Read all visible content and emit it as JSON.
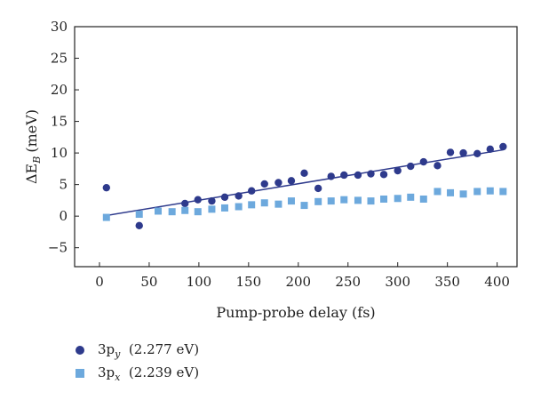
{
  "chart_data": {
    "type": "scatter",
    "xlabel": "Pump-probe delay (fs)",
    "ylabel": "ΔE",
    "ylabel_sub": "B",
    "ylabel_unit": "(meV)",
    "xlim": [
      -25,
      420
    ],
    "ylim": [
      -8,
      30
    ],
    "xticks": [
      "0",
      "50",
      "100",
      "150",
      "200",
      "250",
      "300",
      "350",
      "400"
    ],
    "yticks": [
      "−5",
      "0",
      "5",
      "10",
      "15",
      "20",
      "25",
      "30"
    ],
    "grid": false,
    "legend_position": "below",
    "series": [
      {
        "name": "3p",
        "name_sub": "y",
        "name_extra": "(2.277 eV)",
        "marker": "circle",
        "color": "#2e3a8c",
        "x": [
          7,
          40,
          86,
          99,
          113,
          126,
          140,
          153,
          166,
          180,
          193,
          206,
          220,
          233,
          246,
          260,
          273,
          286,
          300,
          313,
          326,
          340,
          353,
          366,
          380,
          393,
          406
        ],
        "y": [
          4.5,
          -1.5,
          2.0,
          2.6,
          2.4,
          3.0,
          3.2,
          4.0,
          5.1,
          5.3,
          5.6,
          6.8,
          4.4,
          6.3,
          6.5,
          6.5,
          6.7,
          6.6,
          7.2,
          7.9,
          8.6,
          8.0,
          10.1,
          10.0,
          9.9,
          10.6,
          11.0
        ],
        "fit": [
          [
            7,
            0.1
          ],
          [
            406,
            10.5
          ]
        ]
      },
      {
        "name": "3p",
        "name_sub": "x",
        "name_extra": "(2.239 eV)",
        "marker": "square",
        "color": "#6da9dd",
        "x": [
          7,
          40,
          59,
          73,
          86,
          99,
          113,
          126,
          140,
          153,
          166,
          180,
          193,
          206,
          220,
          233,
          246,
          260,
          273,
          286,
          300,
          313,
          326,
          340,
          353,
          366,
          380,
          393,
          406
        ],
        "y": [
          -0.2,
          0.3,
          0.8,
          0.7,
          0.9,
          0.7,
          1.1,
          1.3,
          1.5,
          1.8,
          2.1,
          1.9,
          2.4,
          1.7,
          2.3,
          2.4,
          2.6,
          2.5,
          2.4,
          2.7,
          2.8,
          3.0,
          2.7,
          3.9,
          3.7,
          3.5,
          3.9,
          4.0,
          3.9
        ]
      }
    ]
  }
}
